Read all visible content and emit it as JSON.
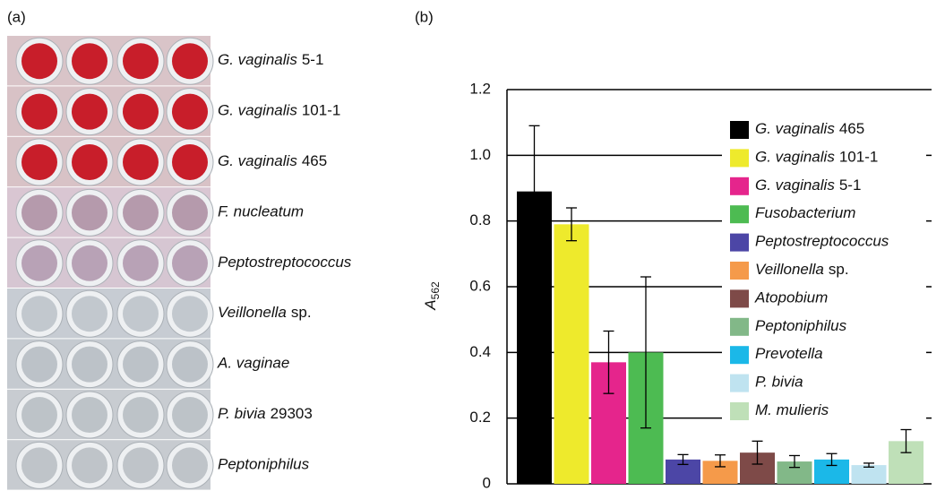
{
  "panel_a": {
    "label": "(a)",
    "rows": [
      {
        "italic": "G. vaginalis",
        "plain": "5-1"
      },
      {
        "italic": "G. vaginalis",
        "plain": "101-1"
      },
      {
        "italic": "G. vaginalis",
        "plain": "465"
      },
      {
        "italic": "F. nucleatum"
      },
      {
        "italic": "Peptostreptococcus"
      },
      {
        "italic": "Veillonella",
        "plain": "sp."
      },
      {
        "italic": "A. vaginae"
      },
      {
        "italic": "P. bivia",
        "plain": "29303"
      },
      {
        "italic": "Peptoniphilus"
      }
    ]
  },
  "chart_data": {
    "type": "bar",
    "panel_label": "(b)",
    "y_label": {
      "text": "A",
      "subscript": "562"
    },
    "ylim": [
      0,
      1.2
    ],
    "yticks": [
      0,
      0.2,
      0.4,
      0.6,
      0.8,
      {
        "value": 1,
        "label": "1.0"
      },
      1.2
    ],
    "grid": true,
    "series": [
      {
        "name": {
          "italic": "G. vaginalis",
          "plain": "465"
        },
        "color": "#000000",
        "values": [
          0.89
        ],
        "errors": [
          0.2
        ]
      },
      {
        "name": {
          "italic": "G. vaginalis",
          "plain": "101-1"
        },
        "color": "#eeea2c",
        "values": [
          0.79
        ],
        "errors": [
          0.05
        ]
      },
      {
        "name": {
          "italic": "G. vaginalis",
          "plain": "5-1"
        },
        "color": "#e5258c",
        "values": [
          0.37
        ],
        "errors": [
          0.095
        ]
      },
      {
        "name": {
          "italic": "Fusobacterium"
        },
        "color": "#4dbb52",
        "values": [
          0.4
        ],
        "errors": [
          0.23
        ]
      },
      {
        "name": {
          "italic": "Peptostreptococcus"
        },
        "color": "#4c46a6",
        "values": [
          0.074
        ],
        "errors": [
          0.015
        ]
      },
      {
        "name": {
          "italic": "Veillonella",
          "plain": "sp."
        },
        "color": "#f59a4a",
        "values": [
          0.07
        ],
        "errors": [
          0.018
        ]
      },
      {
        "name": {
          "italic": "Atopobium"
        },
        "color": "#7e4a48",
        "values": [
          0.095
        ],
        "errors": [
          0.035
        ]
      },
      {
        "name": {
          "italic": "Peptoniphilus"
        },
        "color": "#82b888",
        "values": [
          0.068
        ],
        "errors": [
          0.018
        ]
      },
      {
        "name": {
          "italic": "Prevotella"
        },
        "color": "#1bb8e8",
        "values": [
          0.074
        ],
        "errors": [
          0.018
        ]
      },
      {
        "name": {
          "italic": "P. bivia"
        },
        "color": "#bfe3f0",
        "values": [
          0.057
        ],
        "errors": [
          0.006
        ]
      },
      {
        "name": {
          "italic": "M. mulieris"
        },
        "color": "#bfe0b8",
        "values": [
          0.13
        ],
        "errors": [
          0.035
        ]
      }
    ]
  }
}
